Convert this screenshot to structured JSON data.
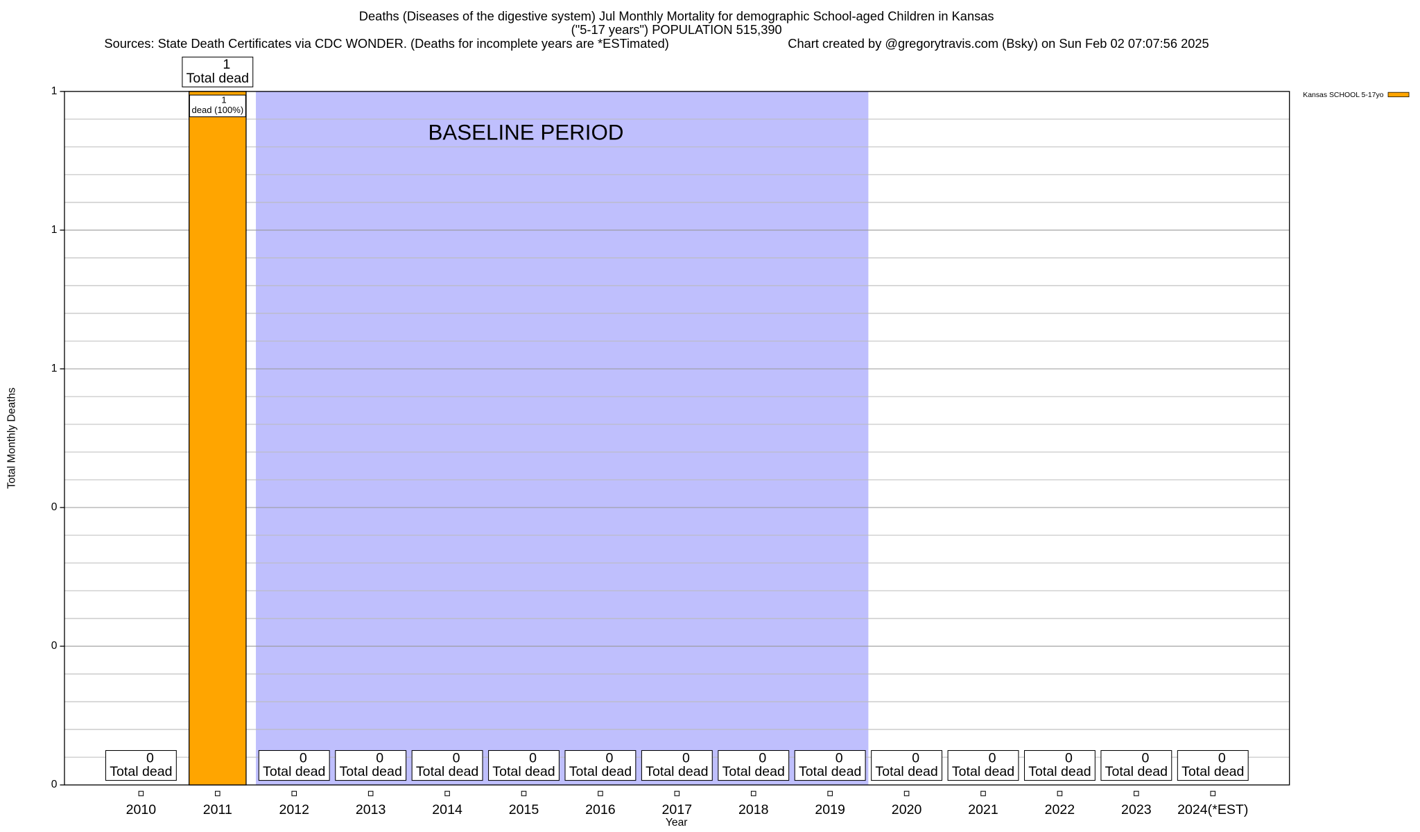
{
  "chart_data": {
    "type": "bar",
    "title": "Deaths (Diseases of the digestive system) Jul Monthly Mortality for demographic School-aged Children in Kansas",
    "subtitle": "(\"5-17 years\") POPULATION 515,390",
    "sources": "Sources: State Death Certificates via CDC WONDER. (Deaths for incomplete years are *ESTimated)",
    "credit": "Chart created by @gregorytravis.com (Bsky) on Sun Feb 02 07:07:56 2025",
    "x_label": "Year",
    "y_label": "Total Monthly Deaths",
    "categories": [
      "2010",
      "2011",
      "2012",
      "2013",
      "2014",
      "2015",
      "2016",
      "2017",
      "2018",
      "2019",
      "2020",
      "2021",
      "2022",
      "2023",
      "2024(*EST)"
    ],
    "series": [
      {
        "name": "Kansas SCHOOL 5-17yo",
        "color": "#ffa500",
        "values": [
          0,
          1,
          0,
          0,
          0,
          0,
          0,
          0,
          0,
          0,
          0,
          0,
          0,
          0,
          0
        ],
        "segment_labels": [
          null,
          "dead (100%)",
          null,
          null,
          null,
          null,
          null,
          null,
          null,
          null,
          null,
          null,
          null,
          null,
          null
        ]
      }
    ],
    "total_label": "Total dead",
    "baseline": {
      "label": "BASELINE PERIOD",
      "start": "2012",
      "end": "2019",
      "color": "#bfbffd"
    },
    "ylim": [
      0,
      1
    ],
    "yticks": [
      {
        "value": 0,
        "label": "0"
      },
      {
        "value": 0.2,
        "label": "0"
      },
      {
        "value": 0.4,
        "label": "0"
      },
      {
        "value": 0.6,
        "label": "1"
      },
      {
        "value": 0.8,
        "label": "1"
      },
      {
        "value": 1,
        "label": "1"
      }
    ],
    "yminorticks": [
      0.04,
      0.08,
      0.12,
      0.16,
      0.24,
      0.28,
      0.32,
      0.36,
      0.44,
      0.48,
      0.52,
      0.56,
      0.64,
      0.68,
      0.72,
      0.76,
      0.84,
      0.88,
      0.92,
      0.96
    ],
    "grid": true,
    "legend": "top-right"
  }
}
